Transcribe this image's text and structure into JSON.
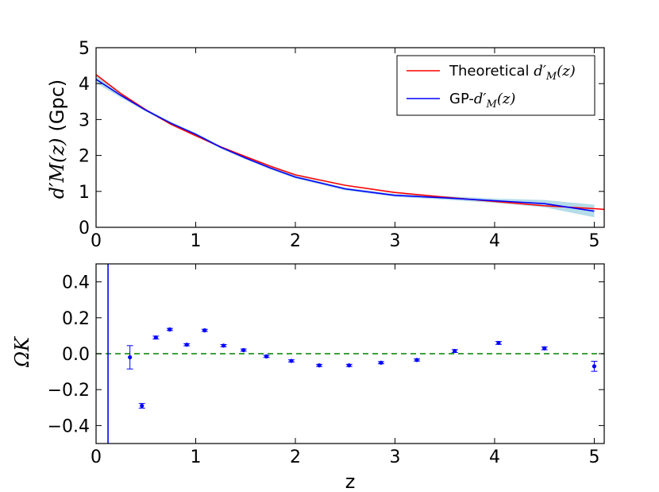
{
  "chart_data": [
    {
      "type": "line",
      "ylabel": {
        "math": "d′M(z)",
        "unit": "(Gpc)"
      },
      "xlim": [
        0,
        5.1
      ],
      "ylim": [
        0,
        5
      ],
      "xticks": [
        "0",
        "1",
        "2",
        "3",
        "4",
        "5"
      ],
      "yticks": [
        "0",
        "1",
        "2",
        "3",
        "4",
        "5"
      ],
      "legend_position": "top-right",
      "grid": false,
      "series": [
        {
          "name": "Theoretical d′M(z)",
          "prefix": "Theoretical",
          "color": "#ff0000",
          "x": [
            0,
            0.25,
            0.5,
            0.75,
            1.0,
            1.25,
            1.5,
            1.75,
            2.0,
            2.5,
            3.0,
            3.5,
            4.0,
            4.5,
            5.0,
            5.1
          ],
          "y": [
            4.25,
            3.72,
            3.27,
            2.87,
            2.55,
            2.24,
            1.97,
            1.7,
            1.46,
            1.17,
            0.97,
            0.84,
            0.72,
            0.6,
            0.52,
            0.5
          ]
        },
        {
          "name": "GP-d′M(z)",
          "prefix": "GP-",
          "color": "#0000ff",
          "band_color": "#add8e6",
          "x": [
            0,
            0.25,
            0.5,
            0.75,
            1.0,
            1.25,
            1.5,
            1.75,
            2.0,
            2.5,
            3.0,
            3.5,
            4.0,
            4.5,
            5.0
          ],
          "y": [
            4.12,
            3.67,
            3.26,
            2.9,
            2.59,
            2.23,
            1.93,
            1.65,
            1.4,
            1.07,
            0.89,
            0.82,
            0.74,
            0.66,
            0.45
          ],
          "lower": [
            4.02,
            3.61,
            3.22,
            2.86,
            2.55,
            2.19,
            1.89,
            1.61,
            1.36,
            1.03,
            0.85,
            0.77,
            0.68,
            0.56,
            0.28
          ],
          "upper": [
            4.22,
            3.73,
            3.3,
            2.94,
            2.63,
            2.27,
            1.97,
            1.69,
            1.44,
            1.11,
            0.93,
            0.87,
            0.8,
            0.76,
            0.63
          ]
        }
      ]
    },
    {
      "type": "scatter",
      "xlabel": "z",
      "ylabel": {
        "math": "ΩK"
      },
      "xlim": [
        0,
        5.1
      ],
      "ylim": [
        -0.5,
        0.5
      ],
      "xticks": [
        "0",
        "1",
        "2",
        "3",
        "4",
        "5"
      ],
      "yticks": [
        "0.4",
        "0.2",
        "0.0",
        "−0.2",
        "−0.4"
      ],
      "grid": false,
      "reference_line": {
        "y": 0,
        "color": "#008000",
        "style": "dashed"
      },
      "vertical_line": {
        "x": 0.12,
        "color": "#0000ff"
      },
      "points": {
        "color": "#0000ff",
        "x": [
          0.34,
          0.46,
          0.6,
          0.74,
          0.91,
          1.09,
          1.28,
          1.48,
          1.71,
          1.96,
          2.24,
          2.54,
          2.86,
          3.22,
          3.6,
          4.04,
          4.5,
          5.0
        ],
        "y": [
          -0.02,
          -0.29,
          0.09,
          0.135,
          0.05,
          0.13,
          0.045,
          0.02,
          -0.015,
          -0.04,
          -0.065,
          -0.065,
          -0.05,
          -0.035,
          0.015,
          0.06,
          0.03,
          -0.07
        ],
        "err": [
          0.065,
          0.013,
          0.008,
          0.006,
          0.006,
          0.006,
          0.006,
          0.006,
          0.006,
          0.006,
          0.006,
          0.006,
          0.006,
          0.006,
          0.008,
          0.008,
          0.008,
          0.028
        ]
      }
    }
  ]
}
